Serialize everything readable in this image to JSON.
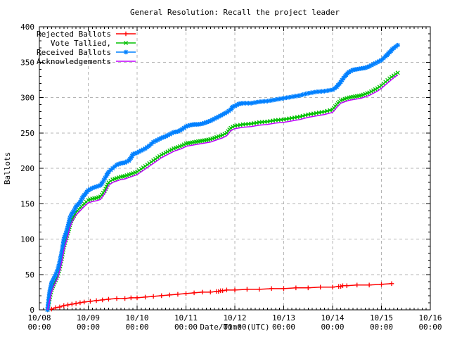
{
  "chart_data": {
    "type": "line",
    "title": "General Resolution: Recall the project leader",
    "xlabel": "Date/Time (UTC)",
    "ylabel": "Ballots",
    "xlim": [
      "10/08 00:00",
      "10/16 00:00"
    ],
    "ylim": [
      0,
      400
    ],
    "x_unit": "hours since 10/08 00:00 UTC",
    "x_total_hours": 192,
    "x_major_step_hours": 24,
    "x_minor_step_hours": 2,
    "y_major_step": 50,
    "y_minor_step": 10,
    "grid": true,
    "legend_position": "top-left-inside",
    "colors": {
      "background": "#ffffff",
      "text": "#000000",
      "border": "#000000",
      "grid": "#b4b4b4"
    },
    "x_ticks": [
      {
        "date": "10/08",
        "time": "00:00"
      },
      {
        "date": "10/09",
        "time": "00:00"
      },
      {
        "date": "10/10",
        "time": "00:00"
      },
      {
        "date": "10/11",
        "time": "00:00"
      },
      {
        "date": "10/12",
        "time": "00:00"
      },
      {
        "date": "10/13",
        "time": "00:00"
      },
      {
        "date": "10/14",
        "time": "00:00"
      },
      {
        "date": "10/15",
        "time": "00:00"
      },
      {
        "date": "10/16",
        "time": "00:00"
      }
    ],
    "y_ticks": [
      "0",
      "50",
      "100",
      "150",
      "200",
      "250",
      "300",
      "350",
      "400"
    ],
    "series": [
      {
        "id": "rejected-ballots",
        "name": "Rejected Ballots",
        "color": "#ff0000",
        "marker": "plus",
        "marker_spacing_px": 0,
        "points": [
          [
            4,
            0
          ],
          [
            6,
            1
          ],
          [
            8,
            3
          ],
          [
            10,
            4
          ],
          [
            12,
            6
          ],
          [
            14,
            7
          ],
          [
            16,
            8
          ],
          [
            18,
            9
          ],
          [
            20,
            10
          ],
          [
            22,
            11
          ],
          [
            25,
            12
          ],
          [
            28,
            13
          ],
          [
            31,
            14
          ],
          [
            34,
            15
          ],
          [
            38,
            16
          ],
          [
            42,
            16
          ],
          [
            45,
            17
          ],
          [
            48,
            17
          ],
          [
            52,
            18
          ],
          [
            56,
            19
          ],
          [
            60,
            20
          ],
          [
            64,
            21
          ],
          [
            68,
            22
          ],
          [
            72,
            23
          ],
          [
            76,
            24
          ],
          [
            80,
            25
          ],
          [
            84,
            25
          ],
          [
            87,
            26
          ],
          [
            88,
            26
          ],
          [
            89,
            27
          ],
          [
            90,
            27
          ],
          [
            92,
            28
          ],
          [
            96,
            28
          ],
          [
            102,
            29
          ],
          [
            108,
            29
          ],
          [
            114,
            30
          ],
          [
            120,
            30
          ],
          [
            126,
            31
          ],
          [
            132,
            31
          ],
          [
            138,
            32
          ],
          [
            144,
            32
          ],
          [
            147,
            33
          ],
          [
            148,
            33
          ],
          [
            149,
            34
          ],
          [
            151,
            34
          ],
          [
            156,
            35
          ],
          [
            162,
            35
          ],
          [
            168,
            36
          ],
          [
            173,
            37
          ]
        ]
      },
      {
        "id": "vote-tallied",
        "name": "Vote Tallied,",
        "color": "#00c000",
        "marker": "cross",
        "marker_spacing_px": 4,
        "points": [
          [
            4,
            0
          ],
          [
            5,
            15
          ],
          [
            6,
            28
          ],
          [
            7,
            36
          ],
          [
            8,
            42
          ],
          [
            9,
            48
          ],
          [
            10,
            58
          ],
          [
            11,
            72
          ],
          [
            12,
            88
          ],
          [
            13,
            98
          ],
          [
            14,
            108
          ],
          [
            15,
            120
          ],
          [
            16,
            128
          ],
          [
            17,
            133
          ],
          [
            18,
            138
          ],
          [
            20,
            144
          ],
          [
            22,
            150
          ],
          [
            24,
            155
          ],
          [
            26,
            157
          ],
          [
            28,
            158
          ],
          [
            30,
            160
          ],
          [
            32,
            168
          ],
          [
            34,
            180
          ],
          [
            36,
            184
          ],
          [
            38,
            186
          ],
          [
            40,
            188
          ],
          [
            42,
            189
          ],
          [
            44,
            191
          ],
          [
            46,
            193
          ],
          [
            48,
            195
          ],
          [
            50,
            199
          ],
          [
            52,
            203
          ],
          [
            54,
            207
          ],
          [
            56,
            211
          ],
          [
            58,
            215
          ],
          [
            60,
            219
          ],
          [
            62,
            222
          ],
          [
            64,
            225
          ],
          [
            66,
            228
          ],
          [
            68,
            230
          ],
          [
            70,
            232
          ],
          [
            72,
            235
          ],
          [
            74,
            236
          ],
          [
            76,
            237
          ],
          [
            78,
            238
          ],
          [
            80,
            239
          ],
          [
            82,
            240
          ],
          [
            84,
            241
          ],
          [
            86,
            243
          ],
          [
            88,
            245
          ],
          [
            90,
            247
          ],
          [
            92,
            250
          ],
          [
            94,
            257
          ],
          [
            96,
            260
          ],
          [
            100,
            262
          ],
          [
            104,
            263
          ],
          [
            108,
            265
          ],
          [
            112,
            266
          ],
          [
            116,
            268
          ],
          [
            120,
            269
          ],
          [
            124,
            271
          ],
          [
            128,
            273
          ],
          [
            132,
            276
          ],
          [
            136,
            278
          ],
          [
            140,
            280
          ],
          [
            144,
            283
          ],
          [
            146,
            290
          ],
          [
            148,
            296
          ],
          [
            150,
            298
          ],
          [
            152,
            300
          ],
          [
            154,
            301
          ],
          [
            156,
            302
          ],
          [
            158,
            303
          ],
          [
            160,
            305
          ],
          [
            162,
            307
          ],
          [
            164,
            310
          ],
          [
            166,
            313
          ],
          [
            168,
            317
          ],
          [
            170,
            322
          ],
          [
            172,
            327
          ],
          [
            174,
            331
          ],
          [
            176,
            335
          ]
        ]
      },
      {
        "id": "received-ballots",
        "name": "Received Ballots",
        "color": "#0080ff",
        "marker": "asterisk",
        "marker_spacing_px": 4,
        "points": [
          [
            4,
            0
          ],
          [
            5,
            25
          ],
          [
            6,
            38
          ],
          [
            7,
            44
          ],
          [
            8,
            50
          ],
          [
            9,
            57
          ],
          [
            10,
            68
          ],
          [
            11,
            82
          ],
          [
            12,
            100
          ],
          [
            13,
            108
          ],
          [
            14,
            118
          ],
          [
            15,
            130
          ],
          [
            16,
            136
          ],
          [
            17,
            140
          ],
          [
            18,
            146
          ],
          [
            20,
            152
          ],
          [
            21,
            158
          ],
          [
            22,
            162
          ],
          [
            24,
            169
          ],
          [
            26,
            172
          ],
          [
            28,
            174
          ],
          [
            30,
            176
          ],
          [
            31,
            180
          ],
          [
            33,
            190
          ],
          [
            34,
            195
          ],
          [
            36,
            200
          ],
          [
            38,
            205
          ],
          [
            40,
            207
          ],
          [
            42,
            208
          ],
          [
            44,
            211
          ],
          [
            45,
            215
          ],
          [
            46,
            220
          ],
          [
            48,
            222
          ],
          [
            50,
            225
          ],
          [
            52,
            228
          ],
          [
            54,
            232
          ],
          [
            56,
            237
          ],
          [
            58,
            240
          ],
          [
            60,
            243
          ],
          [
            62,
            245
          ],
          [
            64,
            248
          ],
          [
            66,
            251
          ],
          [
            68,
            252
          ],
          [
            70,
            255
          ],
          [
            72,
            259
          ],
          [
            74,
            261
          ],
          [
            76,
            262
          ],
          [
            78,
            262
          ],
          [
            80,
            263
          ],
          [
            82,
            265
          ],
          [
            84,
            267
          ],
          [
            86,
            270
          ],
          [
            88,
            273
          ],
          [
            90,
            276
          ],
          [
            92,
            279
          ],
          [
            94,
            283
          ],
          [
            95,
            287
          ],
          [
            96,
            288
          ],
          [
            98,
            291
          ],
          [
            100,
            292
          ],
          [
            104,
            292
          ],
          [
            108,
            294
          ],
          [
            112,
            295
          ],
          [
            116,
            297
          ],
          [
            120,
            299
          ],
          [
            124,
            301
          ],
          [
            128,
            303
          ],
          [
            132,
            306
          ],
          [
            136,
            308
          ],
          [
            140,
            309
          ],
          [
            144,
            311
          ],
          [
            146,
            315
          ],
          [
            148,
            322
          ],
          [
            150,
            330
          ],
          [
            152,
            336
          ],
          [
            154,
            339
          ],
          [
            156,
            340
          ],
          [
            158,
            341
          ],
          [
            160,
            342
          ],
          [
            162,
            344
          ],
          [
            164,
            347
          ],
          [
            166,
            350
          ],
          [
            168,
            353
          ],
          [
            170,
            358
          ],
          [
            172,
            364
          ],
          [
            174,
            370
          ],
          [
            176,
            374
          ]
        ]
      },
      {
        "id": "acknowledgements",
        "name": "Acknowledgements",
        "color": "#c000ff",
        "marker": "none",
        "marker_spacing_px": 0,
        "points": [
          [
            4,
            0
          ],
          [
            5,
            12
          ],
          [
            6,
            25
          ],
          [
            7,
            33
          ],
          [
            8,
            39
          ],
          [
            9,
            45
          ],
          [
            10,
            55
          ],
          [
            11,
            68
          ],
          [
            12,
            84
          ],
          [
            13,
            94
          ],
          [
            14,
            104
          ],
          [
            15,
            116
          ],
          [
            16,
            124
          ],
          [
            17,
            129
          ],
          [
            18,
            134
          ],
          [
            20,
            140
          ],
          [
            22,
            146
          ],
          [
            24,
            151
          ],
          [
            26,
            153
          ],
          [
            28,
            154
          ],
          [
            30,
            156
          ],
          [
            32,
            164
          ],
          [
            34,
            176
          ],
          [
            36,
            180
          ],
          [
            38,
            182
          ],
          [
            40,
            184
          ],
          [
            42,
            185
          ],
          [
            44,
            187
          ],
          [
            46,
            189
          ],
          [
            48,
            191
          ],
          [
            50,
            195
          ],
          [
            52,
            199
          ],
          [
            54,
            203
          ],
          [
            56,
            207
          ],
          [
            58,
            211
          ],
          [
            60,
            215
          ],
          [
            62,
            218
          ],
          [
            64,
            221
          ],
          [
            66,
            224
          ],
          [
            68,
            226
          ],
          [
            70,
            228
          ],
          [
            72,
            231
          ],
          [
            74,
            232
          ],
          [
            76,
            233
          ],
          [
            78,
            234
          ],
          [
            80,
            235
          ],
          [
            82,
            236
          ],
          [
            84,
            237
          ],
          [
            86,
            239
          ],
          [
            88,
            241
          ],
          [
            90,
            243
          ],
          [
            92,
            246
          ],
          [
            94,
            253
          ],
          [
            96,
            256
          ],
          [
            100,
            258
          ],
          [
            104,
            259
          ],
          [
            108,
            261
          ],
          [
            112,
            262
          ],
          [
            116,
            264
          ],
          [
            120,
            265
          ],
          [
            124,
            267
          ],
          [
            128,
            269
          ],
          [
            132,
            272
          ],
          [
            136,
            274
          ],
          [
            140,
            276
          ],
          [
            144,
            279
          ],
          [
            146,
            286
          ],
          [
            148,
            292
          ],
          [
            150,
            294
          ],
          [
            152,
            296
          ],
          [
            154,
            297
          ],
          [
            156,
            298
          ],
          [
            158,
            299
          ],
          [
            160,
            301
          ],
          [
            162,
            303
          ],
          [
            164,
            306
          ],
          [
            166,
            309
          ],
          [
            168,
            313
          ],
          [
            170,
            318
          ],
          [
            172,
            323
          ],
          [
            174,
            328
          ],
          [
            176,
            332
          ]
        ]
      }
    ]
  }
}
